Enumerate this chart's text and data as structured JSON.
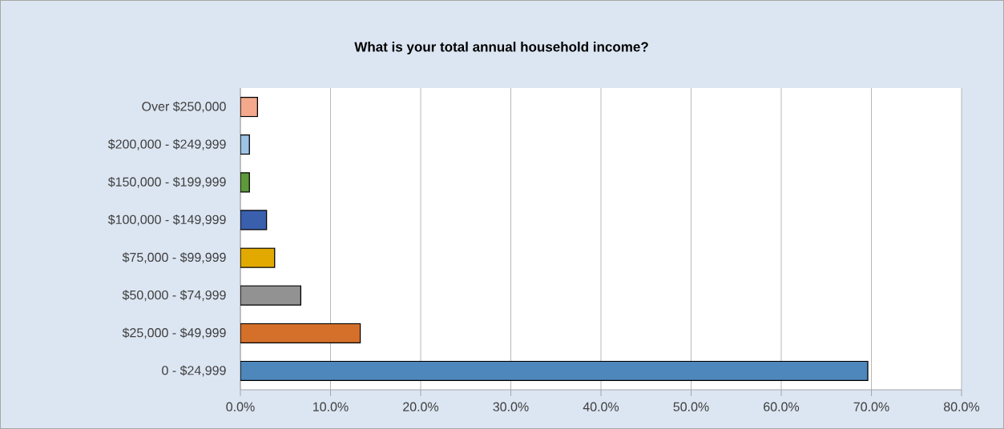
{
  "chart_data": {
    "type": "bar",
    "orientation": "horizontal",
    "title": "What is your total annual household income?",
    "categories": [
      "Over $250,000",
      "$200,000 - $249,999",
      "$150,000 - $199,999",
      "$100,000 - $149,999",
      "$75,000 - $99,999",
      "$50,000 - $74,999",
      "$25,000 - $49,999",
      "0 - $24,999"
    ],
    "values": [
      1.9,
      1.0,
      1.0,
      2.9,
      3.8,
      6.7,
      13.3,
      69.6
    ],
    "colors": [
      "#f4a98c",
      "#9dc3e6",
      "#5e9a3a",
      "#3a5fad",
      "#e2aa00",
      "#929292",
      "#d4702a",
      "#4e87bb"
    ],
    "xlim": [
      0,
      80
    ],
    "xticks": [
      {
        "value": 0,
        "label": "0.0%"
      },
      {
        "value": 10,
        "label": "10.0%"
      },
      {
        "value": 20,
        "label": "20.0%"
      },
      {
        "value": 30,
        "label": "30.0%"
      },
      {
        "value": 40,
        "label": "40.0%"
      },
      {
        "value": 50,
        "label": "50.0%"
      },
      {
        "value": 60,
        "label": "60.0%"
      },
      {
        "value": 70,
        "label": "70.0%"
      },
      {
        "value": 80,
        "label": "80.0%"
      }
    ],
    "grid": "x"
  }
}
